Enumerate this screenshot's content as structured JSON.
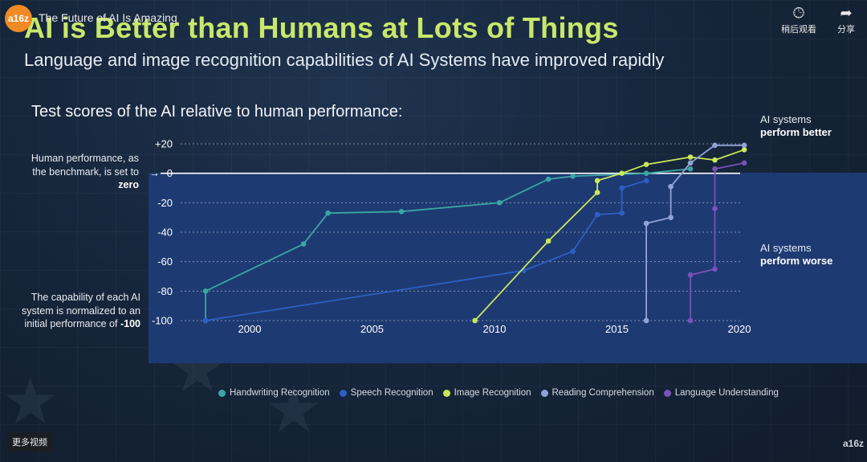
{
  "video": {
    "channel_logo": "a16z",
    "title": "The Future of AI Is Amazing",
    "watch_later_label": "稍后观看",
    "share_label": "分享",
    "more_videos_label": "更多视频",
    "watermark": "a16z",
    "icons": {
      "watch_later": "clock-icon",
      "share": "share-arrow-icon"
    }
  },
  "slide": {
    "title": "AI is Better than Humans at Lots of Things",
    "subtitle": "Language and image recognition capabilities of AI Systems have improved rapidly",
    "chart_heading": "Test scores of the AI relative to human performance:",
    "benchmark_note_prefix": "Human performance, as the benchmark, is set to",
    "benchmark_note_emph": "zero",
    "normalize_note_prefix": "The capability of each AI system is normalized to an initial performance of",
    "normalize_note_emph": "-100",
    "better_line1": "AI systems",
    "better_line2": "perform better",
    "worse_line1": "AI systems",
    "worse_line2": "perform worse"
  },
  "colors": {
    "title": "#c8e86a",
    "handwriting": "#3aa6a6",
    "speech": "#2d5fc4",
    "image": "#c9e85a",
    "reading": "#8fa3d6",
    "language": "#7a52b8",
    "panel": "#1e3a72"
  },
  "chart_data": {
    "type": "line",
    "title": "Test scores of the AI relative to human performance:",
    "xlabel": "",
    "ylabel": "",
    "xlim": [
      1998,
      2020
    ],
    "ylim": [
      -100,
      20
    ],
    "x_ticks": [
      "2000",
      "2005",
      "2010",
      "2015",
      "2020"
    ],
    "x_tick_values": [
      2000,
      2005,
      2010,
      2015,
      2020
    ],
    "y_ticks": [
      "+20",
      "0",
      "-20",
      "-40",
      "-60",
      "-80",
      "-100"
    ],
    "y_tick_values": [
      20,
      0,
      -20,
      -40,
      -60,
      -80,
      -100
    ],
    "series": [
      {
        "name": "Handwriting Recognition",
        "color_key": "handwriting",
        "points": [
          [
            1998.2,
            -100
          ],
          [
            1998.2,
            -80
          ],
          [
            2002.2,
            -48
          ],
          [
            2003.2,
            -27
          ],
          [
            2006.2,
            -26
          ],
          [
            2010.2,
            -20
          ],
          [
            2012.2,
            -4
          ],
          [
            2013.2,
            -2
          ],
          [
            2016.2,
            0
          ],
          [
            2018,
            3
          ]
        ]
      },
      {
        "name": "Speech Recognition",
        "color_key": "speech",
        "points": [
          [
            1998.2,
            -100
          ],
          [
            2011.2,
            -66
          ],
          [
            2013.2,
            -53
          ],
          [
            2014.2,
            -28
          ],
          [
            2015.2,
            -27
          ],
          [
            2015.2,
            -10
          ],
          [
            2016.2,
            -5
          ]
        ]
      },
      {
        "name": "Image Recognition",
        "color_key": "image",
        "points": [
          [
            2009.2,
            -100
          ],
          [
            2012.2,
            -46
          ],
          [
            2014.2,
            -13
          ],
          [
            2014.2,
            -5
          ],
          [
            2015.2,
            0
          ],
          [
            2016.2,
            6
          ],
          [
            2018,
            11
          ],
          [
            2019,
            9
          ],
          [
            2020.2,
            16
          ]
        ]
      },
      {
        "name": "Reading Comprehension",
        "color_key": "reading",
        "points": [
          [
            2016.2,
            -100
          ],
          [
            2016.2,
            -34
          ],
          [
            2017.2,
            -30
          ],
          [
            2017.2,
            -9
          ],
          [
            2018,
            7
          ],
          [
            2019,
            19
          ],
          [
            2020.2,
            19
          ]
        ]
      },
      {
        "name": "Language Understanding",
        "color_key": "language",
        "points": [
          [
            2018,
            -100
          ],
          [
            2018,
            -69
          ],
          [
            2019,
            -65
          ],
          [
            2019,
            -24
          ],
          [
            2019,
            3
          ],
          [
            2020.2,
            7
          ]
        ]
      }
    ],
    "legend_position": "bottom"
  }
}
